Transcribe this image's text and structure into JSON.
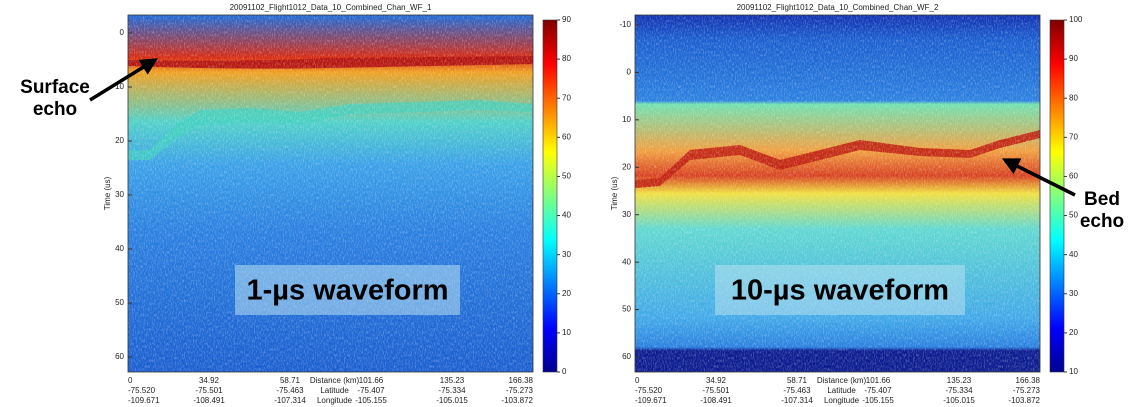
{
  "panels": [
    {
      "title": "20091102_Flight1012_Data_10_Combined_Chan_WF_1",
      "y_axis_label": "Time (us)",
      "y_ticks": [
        "0",
        "10",
        "20",
        "30",
        "40",
        "50",
        "60"
      ],
      "colorbar_ticks": [
        "0",
        "10",
        "20",
        "30",
        "40",
        "50",
        "60",
        "70",
        "80",
        "90"
      ],
      "x_rows": [
        [
          "0",
          "34.92",
          "58.71",
          "Distance (km)",
          "101.66",
          "135.23",
          "166.38"
        ],
        [
          "-75.520",
          "-75.501",
          "-75.463",
          "Latitude",
          "-75.407",
          "-75.334",
          "-75.273"
        ],
        [
          "-109.671",
          "-108.491",
          "-107.314",
          "Longitude",
          "-105.155",
          "-105.015",
          "-103.872"
        ]
      ],
      "overlay_label": "1-µs waveform"
    },
    {
      "title": "20091102_Flight1012_Data_10_Combined_Chan_WF_2",
      "y_axis_label": "Time (us)",
      "y_ticks": [
        "-10",
        "0",
        "10",
        "20",
        "30",
        "40",
        "50",
        "60"
      ],
      "colorbar_ticks": [
        "10",
        "20",
        "30",
        "40",
        "50",
        "60",
        "70",
        "80",
        "90",
        "100"
      ],
      "x_rows": [
        [
          "0",
          "34.92",
          "58.71",
          "Distance (km)",
          "101.66",
          "135.23",
          "166.38"
        ],
        [
          "-75.520",
          "-75.501",
          "-75.463",
          "Latitude",
          "-75.407",
          "-75.334",
          "-75.273"
        ],
        [
          "-109.671",
          "-108.491",
          "-107.314",
          "Longitude",
          "-105.155",
          "-105.015",
          "-103.872"
        ]
      ],
      "overlay_label": "10-µs waveform"
    }
  ],
  "annotations": [
    {
      "lines": [
        "Surface",
        "echo"
      ]
    },
    {
      "lines": [
        "Bed",
        "echo"
      ]
    }
  ]
}
